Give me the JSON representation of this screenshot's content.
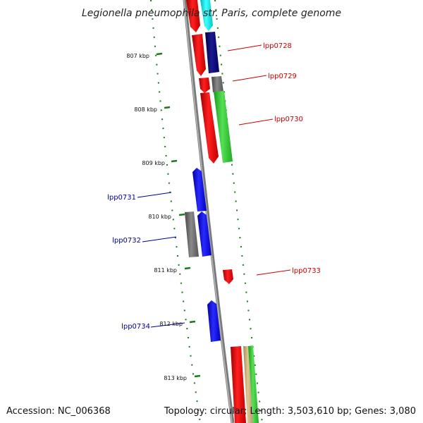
{
  "title": "Legionella pneumophila str. Paris, complete genome",
  "footer": {
    "accession": "Accession: NC_006368",
    "summary": "Topology: circular; Length: 3,503,610 bp; Genes: 3,080"
  },
  "colors": {
    "backbone": "#8c8c8c",
    "tick": "#1a7a1a",
    "label_forward": "#cc0000",
    "label_reverse": "#000099"
  },
  "ticks": [
    {
      "label": "807 kbp",
      "kbp": 807
    },
    {
      "label": "808 kbp",
      "kbp": 808
    },
    {
      "label": "809 kbp",
      "kbp": 809
    },
    {
      "label": "810 kbp",
      "kbp": 810
    },
    {
      "label": "811 kbp",
      "kbp": 811
    },
    {
      "label": "812 kbp",
      "kbp": 812
    },
    {
      "label": "813 kbp",
      "kbp": 813
    }
  ],
  "gene_labels": [
    {
      "text": "lpp0728",
      "strand": "forward"
    },
    {
      "text": "lpp0729",
      "strand": "forward"
    },
    {
      "text": "lpp0730",
      "strand": "forward"
    },
    {
      "text": "lpp0731",
      "strand": "reverse"
    },
    {
      "text": "lpp0732",
      "strand": "reverse"
    },
    {
      "text": "lpp0733",
      "strand": "forward"
    },
    {
      "text": "lpp0734",
      "strand": "reverse"
    }
  ]
}
